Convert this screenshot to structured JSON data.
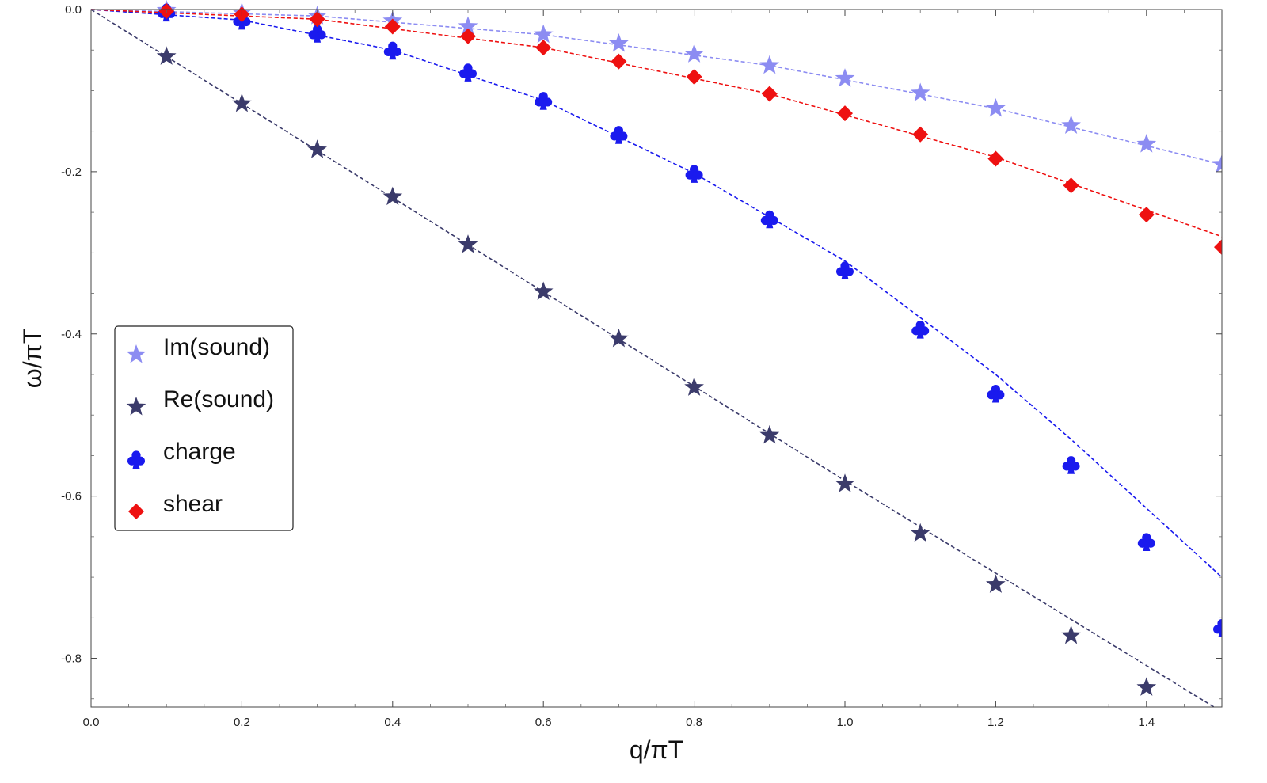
{
  "chart_data": {
    "type": "scatter",
    "title": "",
    "xlabel": "q/πT",
    "ylabel": "ω/πT",
    "xlim": [
      0,
      1.5
    ],
    "ylim": [
      -0.86,
      0
    ],
    "x_ticks": [
      0.0,
      0.2,
      0.4,
      0.6,
      0.8,
      1.0,
      1.2,
      1.4
    ],
    "x_tick_labels": [
      "0.0",
      "0.2",
      "0.4",
      "0.6",
      "0.8",
      "1.0",
      "1.2",
      "1.4"
    ],
    "y_ticks": [
      0.0,
      -0.2,
      -0.4,
      -0.6,
      -0.8
    ],
    "y_tick_labels": [
      "0.0",
      "-0.2",
      "-0.4",
      "-0.6",
      "-0.8"
    ],
    "legend_position": "left-middle",
    "series": [
      {
        "name": "Im(sound)",
        "marker": "star",
        "color": "#8c8cf2",
        "x": [
          0.1,
          0.2,
          0.3,
          0.4,
          0.5,
          0.6,
          0.7,
          0.8,
          0.9,
          1.0,
          1.1,
          1.2,
          1.3,
          1.4,
          1.5
        ],
        "values": [
          -0.001,
          -0.004,
          -0.008,
          -0.014,
          -0.021,
          -0.031,
          -0.042,
          -0.055,
          -0.069,
          -0.085,
          -0.103,
          -0.122,
          -0.143,
          -0.166,
          -0.191
        ],
        "fit": [
          [
            0,
            0
          ],
          [
            0.3,
            -0.008
          ],
          [
            0.6,
            -0.031
          ],
          [
            0.9,
            -0.069
          ],
          [
            1.2,
            -0.122
          ],
          [
            1.5,
            -0.191
          ]
        ]
      },
      {
        "name": "Re(sound)",
        "marker": "star",
        "color": "#3b3b6b",
        "x": [
          0.1,
          0.2,
          0.3,
          0.4,
          0.5,
          0.6,
          0.7,
          0.8,
          0.9,
          1.0,
          1.1,
          1.2,
          1.3,
          1.4
        ],
        "values": [
          -0.058,
          -0.116,
          -0.173,
          -0.231,
          -0.29,
          -0.348,
          -0.406,
          -0.466,
          -0.525,
          -0.585,
          -0.646,
          -0.709,
          -0.772,
          -0.836
        ],
        "fit": [
          [
            0,
            0
          ],
          [
            0.5,
            -0.29
          ],
          [
            1.0,
            -0.581
          ],
          [
            1.5,
            -0.866
          ]
        ]
      },
      {
        "name": "charge",
        "marker": "club",
        "color": "#1a1aee",
        "x": [
          0.1,
          0.2,
          0.3,
          0.4,
          0.5,
          0.6,
          0.7,
          0.8,
          0.9,
          1.0,
          1.1,
          1.2,
          1.3,
          1.4,
          1.5
        ],
        "values": [
          -0.003,
          -0.013,
          -0.029,
          -0.05,
          -0.077,
          -0.112,
          -0.154,
          -0.202,
          -0.258,
          -0.321,
          -0.394,
          -0.473,
          -0.561,
          -0.656,
          -0.762
        ],
        "fit": [
          [
            0,
            0
          ],
          [
            0.2,
            -0.013
          ],
          [
            0.4,
            -0.05
          ],
          [
            0.6,
            -0.112
          ],
          [
            0.8,
            -0.202
          ],
          [
            1.0,
            -0.31
          ],
          [
            1.2,
            -0.45
          ],
          [
            1.3,
            -0.53
          ],
          [
            1.4,
            -0.615
          ],
          [
            1.5,
            -0.7
          ]
        ]
      },
      {
        "name": "shear",
        "marker": "diamond",
        "color": "#ee1111",
        "x": [
          0.1,
          0.2,
          0.3,
          0.4,
          0.5,
          0.6,
          0.7,
          0.8,
          0.9,
          1.0,
          1.1,
          1.2,
          1.3,
          1.4,
          1.5
        ],
        "values": [
          -0.002,
          -0.006,
          -0.012,
          -0.021,
          -0.033,
          -0.047,
          -0.064,
          -0.083,
          -0.104,
          -0.128,
          -0.154,
          -0.184,
          -0.217,
          -0.253,
          -0.293
        ],
        "fit": [
          [
            0,
            0
          ],
          [
            0.3,
            -0.012
          ],
          [
            0.6,
            -0.047
          ],
          [
            0.9,
            -0.104
          ],
          [
            1.2,
            -0.182
          ],
          [
            1.5,
            -0.28
          ]
        ]
      }
    ]
  }
}
